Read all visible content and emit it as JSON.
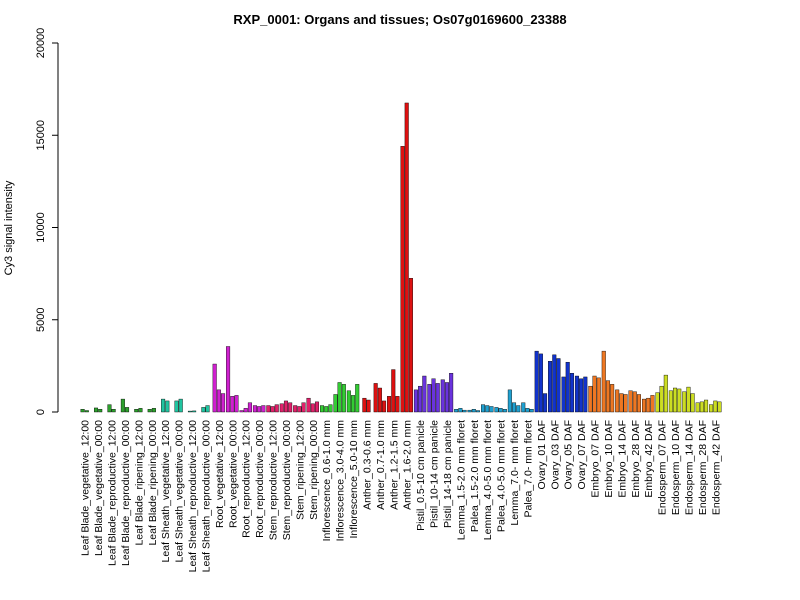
{
  "chart_data": {
    "type": "bar",
    "title": "RXP_0001: Organs and tissues; Os07g0169600_23388",
    "ylabel": "Cy3 signal intensity",
    "xlabel": "",
    "ylim": [
      0,
      20000
    ],
    "yticks": [
      0,
      5000,
      10000,
      15000,
      20000
    ],
    "grid": false,
    "legend": "none",
    "groups": [
      {
        "label": "Leaf Blade_vegetative_12:00",
        "color": "#2ca02c",
        "values": [
          150,
          80
        ]
      },
      {
        "label": "Leaf Blade_vegetative_00:00",
        "color": "#2ca02c",
        "values": [
          220,
          150
        ]
      },
      {
        "label": "Leaf Blade_reproductive_12:00",
        "color": "#2ca02c",
        "values": [
          400,
          150
        ]
      },
      {
        "label": "Leaf Blade_reproductive_00:00",
        "color": "#2ca02c",
        "values": [
          700,
          250
        ]
      },
      {
        "label": "Leaf Blade_ripening_12:00",
        "color": "#2ca02c",
        "values": [
          150,
          200
        ]
      },
      {
        "label": "Leaf Blade_ripening_00:00",
        "color": "#2ca02c",
        "values": [
          150,
          200
        ]
      },
      {
        "label": "Leaf Sheath_vegetative_12:00",
        "color": "#20c4a0",
        "values": [
          700,
          600
        ]
      },
      {
        "label": "Leaf Sheath_vegetative_00:00",
        "color": "#20c4a0",
        "values": [
          600,
          700
        ]
      },
      {
        "label": "Leaf Sheath_reproductive_12:00",
        "color": "#20c4a0",
        "values": [
          50,
          60
        ]
      },
      {
        "label": "Leaf Sheath_reproductive_00:00",
        "color": "#20c4a0",
        "values": [
          250,
          350
        ]
      },
      {
        "label": "Root_vegetative_12:00",
        "color": "#d020d0",
        "values": [
          2600,
          1200,
          1000
        ]
      },
      {
        "label": "Root_vegetative_00:00",
        "color": "#d020d0",
        "values": [
          3550,
          850,
          900
        ]
      },
      {
        "label": "Root_reproductive_12:00",
        "color": "#d020d0",
        "values": [
          80,
          200,
          500
        ]
      },
      {
        "label": "Root_reproductive_00:00",
        "color": "#d020d0",
        "values": [
          350,
          300,
          350
        ]
      },
      {
        "label": "Stem_reproductive_12:00",
        "color": "#e0206a",
        "values": [
          350,
          300,
          400
        ]
      },
      {
        "label": "Stem_reproductive_00:00",
        "color": "#e0206a",
        "values": [
          450,
          600,
          500
        ]
      },
      {
        "label": "Stem_ripening_12:00",
        "color": "#e0206a",
        "values": [
          350,
          300,
          500
        ]
      },
      {
        "label": "Stem_ripening_00:00",
        "color": "#e0206a",
        "values": [
          750,
          450,
          550
        ]
      },
      {
        "label": "Inflorescence_0.6-1.0 mm",
        "color": "#33cc33",
        "values": [
          350,
          300,
          400
        ]
      },
      {
        "label": "Inflorescence_3.0-4.0 mm",
        "color": "#33cc33",
        "values": [
          950,
          1600,
          1500
        ]
      },
      {
        "label": "Inflorescence_5.0-10 mm",
        "color": "#33cc33",
        "values": [
          1150,
          900,
          1500
        ]
      },
      {
        "label": "Anther_0.3-0.6 mm",
        "color": "#dd1111",
        "values": [
          750,
          650
        ]
      },
      {
        "label": "Anther_0.7-1.0 mm",
        "color": "#dd1111",
        "values": [
          1550,
          1300,
          600
        ]
      },
      {
        "label": "Anther_1.2-1.5 mm",
        "color": "#dd1111",
        "values": [
          850,
          2300,
          850
        ]
      },
      {
        "label": "Anther_1.6-2.0 mm",
        "color": "#dd1111",
        "values": [
          14400,
          16750,
          7250
        ]
      },
      {
        "label": "Pistil_0.5-10 cm panicle",
        "color": "#6a33dd",
        "values": [
          1200,
          1400,
          1950
        ]
      },
      {
        "label": "Pistil_10-14 cm panicle",
        "color": "#6a33dd",
        "values": [
          1500,
          1800,
          1550
        ]
      },
      {
        "label": "Pistil_14-18 cm panicle",
        "color": "#6a33dd",
        "values": [
          1750,
          1600,
          2100
        ]
      },
      {
        "label": "Lemma_1.5-2.0 mm floret",
        "color": "#1fa0d0",
        "values": [
          150,
          200,
          100
        ]
      },
      {
        "label": "Palea_1.5-2.0 mm floret",
        "color": "#1fa0d0",
        "values": [
          100,
          150,
          80
        ]
      },
      {
        "label": "Lemma_4.0-5.0 mm floret",
        "color": "#1fa0d0",
        "values": [
          400,
          350,
          300
        ]
      },
      {
        "label": "Palea_4.0-5.0 mm floret",
        "color": "#1fa0d0",
        "values": [
          250,
          200,
          150
        ]
      },
      {
        "label": "Lemma_7.0- mm floret",
        "color": "#1fa0d0",
        "values": [
          1200,
          500,
          350
        ]
      },
      {
        "label": "Palea_7.0- mm floret",
        "color": "#1fa0d0",
        "values": [
          500,
          200,
          150
        ]
      },
      {
        "label": "Ovary_01 DAF",
        "color": "#1133cc",
        "values": [
          3300,
          3150,
          1000
        ]
      },
      {
        "label": "Ovary_03 DAF",
        "color": "#1133cc",
        "values": [
          2750,
          3100,
          2900
        ]
      },
      {
        "label": "Ovary_05 DAF",
        "color": "#1133cc",
        "values": [
          1900,
          2700,
          2100
        ]
      },
      {
        "label": "Ovary_07 DAF",
        "color": "#1133cc",
        "values": [
          1950,
          1800,
          1900
        ]
      },
      {
        "label": "Embryo_07 DAF",
        "color": "#ee7722",
        "values": [
          1400,
          1950,
          1850
        ]
      },
      {
        "label": "Embryo_10 DAF",
        "color": "#ee7722",
        "values": [
          3300,
          1700,
          1500
        ]
      },
      {
        "label": "Embryo_14 DAF",
        "color": "#ee7722",
        "values": [
          1200,
          1000,
          950
        ]
      },
      {
        "label": "Embryo_28 DAF",
        "color": "#ee7722",
        "values": [
          1150,
          1100,
          950
        ]
      },
      {
        "label": "Embryo_42 DAF",
        "color": "#ee7722",
        "values": [
          700,
          750,
          900
        ]
      },
      {
        "label": "Endosperm_07 DAF",
        "color": "#ccdd22",
        "values": [
          1050,
          1400,
          2000
        ]
      },
      {
        "label": "Endosperm_10 DAF",
        "color": "#ccdd22",
        "values": [
          1150,
          1300,
          1250
        ]
      },
      {
        "label": "Endosperm_14 DAF",
        "color": "#ccdd22",
        "values": [
          1100,
          1350,
          1000
        ]
      },
      {
        "label": "Endosperm_28 DAF",
        "color": "#ccdd22",
        "values": [
          500,
          550,
          650
        ]
      },
      {
        "label": "Endosperm_42 DAF",
        "color": "#ccdd22",
        "values": [
          400,
          600,
          550
        ]
      }
    ]
  }
}
